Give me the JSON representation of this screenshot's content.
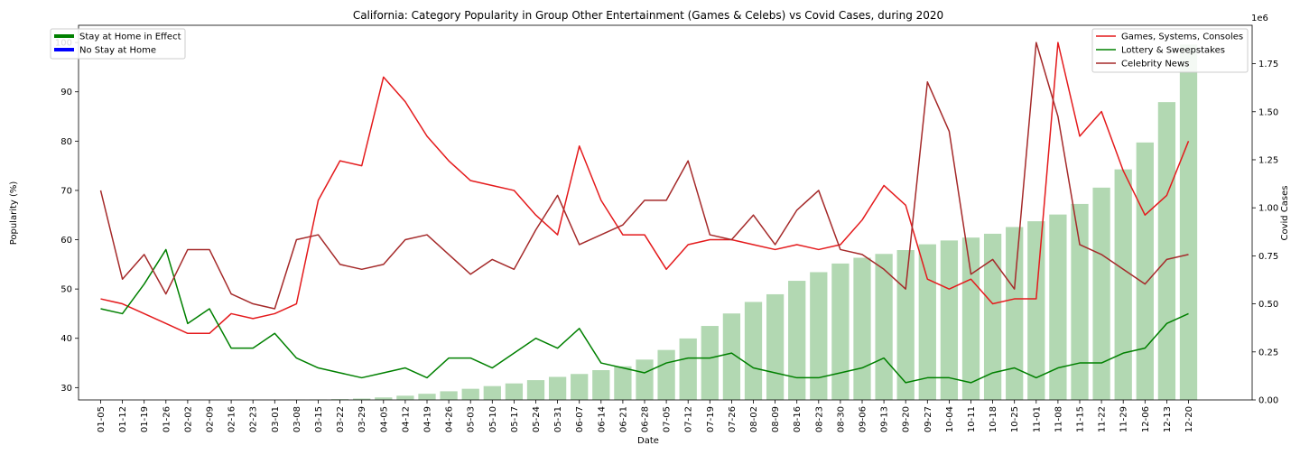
{
  "chart_data": {
    "type": "line",
    "title": "California: Category Popularity in Group Other Entertainment (Games & Celebs) vs Covid Cases, during 2020",
    "xlabel": "Date",
    "ylabel": "Popularity (%)",
    "y2label": "Covid Cases",
    "y2_exponent": "1e6",
    "ylim": [
      27.5,
      103.5
    ],
    "y2lim": [
      0,
      1.95
    ],
    "yticks": [
      30,
      40,
      50,
      60,
      70,
      80,
      90,
      100
    ],
    "y2ticks": [
      0.0,
      0.25,
      0.5,
      0.75,
      1.0,
      1.25,
      1.5,
      1.75
    ],
    "y2tick_labels": [
      "0.00",
      "0.25",
      "0.50",
      "0.75",
      "1.00",
      "1.25",
      "1.50",
      "1.75"
    ],
    "categories": [
      "01-05",
      "01-12",
      "01-19",
      "01-26",
      "02-02",
      "02-09",
      "02-16",
      "02-23",
      "03-01",
      "03-08",
      "03-15",
      "03-22",
      "03-29",
      "04-05",
      "04-12",
      "04-19",
      "04-26",
      "05-03",
      "05-10",
      "05-17",
      "05-24",
      "05-31",
      "06-07",
      "06-14",
      "06-21",
      "06-28",
      "07-05",
      "07-12",
      "07-19",
      "07-26",
      "08-02",
      "08-09",
      "08-16",
      "08-23",
      "08-30",
      "09-06",
      "09-13",
      "09-20",
      "09-27",
      "10-04",
      "10-11",
      "10-18",
      "10-25",
      "11-01",
      "11-08",
      "11-15",
      "11-22",
      "11-29",
      "12-06",
      "12-13",
      "12-20"
    ],
    "series": [
      {
        "name": "Games, Systems, Consoles",
        "color": "#e41a1c",
        "values": [
          48,
          47,
          45,
          43,
          41,
          41,
          45,
          44,
          45,
          47,
          68,
          76,
          75,
          93,
          88,
          81,
          76,
          72,
          71,
          70,
          65,
          61,
          79,
          68,
          61,
          61,
          54,
          59,
          60,
          60,
          59,
          58,
          59,
          58,
          59,
          64,
          71,
          67,
          52,
          50,
          52,
          47,
          48,
          48,
          100,
          81,
          86,
          74,
          65,
          69,
          80
        ]
      },
      {
        "name": "Lottery & Sweepstakes",
        "color": "#008000",
        "values": [
          46,
          45,
          51,
          58,
          43,
          46,
          38,
          38,
          41,
          36,
          34,
          33,
          32,
          33,
          34,
          32,
          36,
          36,
          34,
          37,
          40,
          38,
          42,
          35,
          34,
          33,
          35,
          36,
          36,
          37,
          34,
          33,
          32,
          32,
          33,
          34,
          36,
          31,
          32,
          32,
          31,
          33,
          34,
          32,
          34,
          35,
          35,
          37,
          38,
          43,
          45
        ]
      },
      {
        "name": "Celebrity News",
        "color": "#a52a2a",
        "values": [
          70,
          52,
          57,
          49,
          58,
          58,
          49,
          47,
          46,
          60,
          61,
          55,
          54,
          55,
          60,
          61,
          57,
          53,
          56,
          54,
          62,
          69,
          59,
          61,
          63,
          68,
          68,
          76,
          61,
          60,
          65,
          59,
          66,
          70,
          58,
          57,
          54,
          50,
          92,
          82,
          53,
          56,
          50,
          100,
          85,
          59,
          57,
          54,
          51,
          56,
          57
        ]
      }
    ],
    "bars": {
      "name": "Covid Cases",
      "color": "#b2d8b2",
      "values": [
        0,
        0,
        0,
        0,
        0,
        0,
        0,
        0,
        0,
        0.001,
        0.002,
        0.004,
        0.007,
        0.013,
        0.022,
        0.032,
        0.045,
        0.058,
        0.072,
        0.086,
        0.103,
        0.12,
        0.135,
        0.155,
        0.175,
        0.21,
        0.26,
        0.32,
        0.385,
        0.45,
        0.51,
        0.55,
        0.62,
        0.665,
        0.71,
        0.74,
        0.76,
        0.78,
        0.81,
        0.83,
        0.845,
        0.865,
        0.9,
        0.93,
        0.965,
        1.02,
        1.105,
        1.2,
        1.34,
        1.55,
        1.85
      ]
    },
    "legend_left": {
      "placement": "top-left",
      "entries": [
        {
          "label": "Stay at Home in Effect",
          "color": "#008000"
        },
        {
          "label": "No Stay at Home",
          "color": "#0000ff"
        }
      ]
    },
    "legend_right": {
      "placement": "top-right"
    },
    "grid": false
  }
}
